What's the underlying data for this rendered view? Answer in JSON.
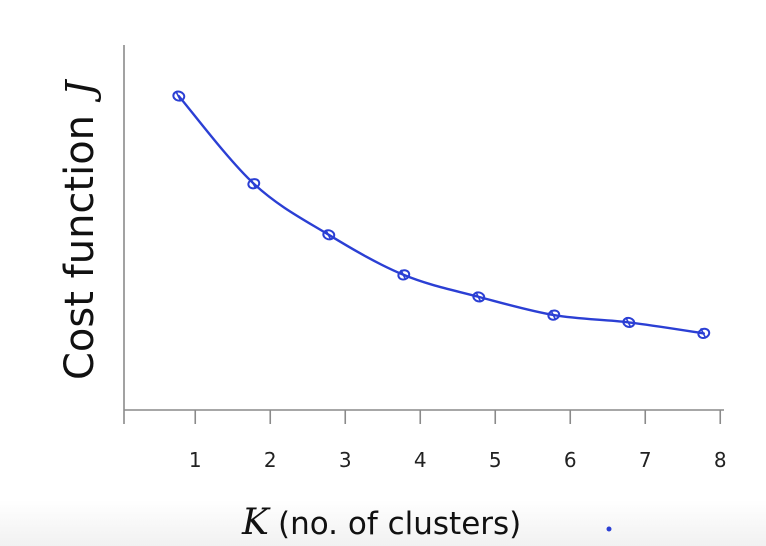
{
  "chart_data": {
    "type": "line",
    "title": "",
    "xlabel_var": "K",
    "xlabel": "(no. of clusters)",
    "ylabel": "Cost function",
    "ylabel_var": "J",
    "x": [
      1,
      2,
      3,
      4,
      5,
      6,
      7,
      8
    ],
    "x_tick_labels": [
      "1",
      "2",
      "3",
      "4",
      "5",
      "6",
      "7",
      "8"
    ],
    "values": [
      0.86,
      0.62,
      0.48,
      0.37,
      0.31,
      0.26,
      0.24,
      0.21
    ],
    "xlim": [
      0.05,
      8.05
    ],
    "ylim": [
      0,
      1
    ],
    "y_ticks_shown": false,
    "grid": false,
    "legend": "none",
    "line_color": "#2b3fd4",
    "axis_color": "#8a8a8a"
  }
}
